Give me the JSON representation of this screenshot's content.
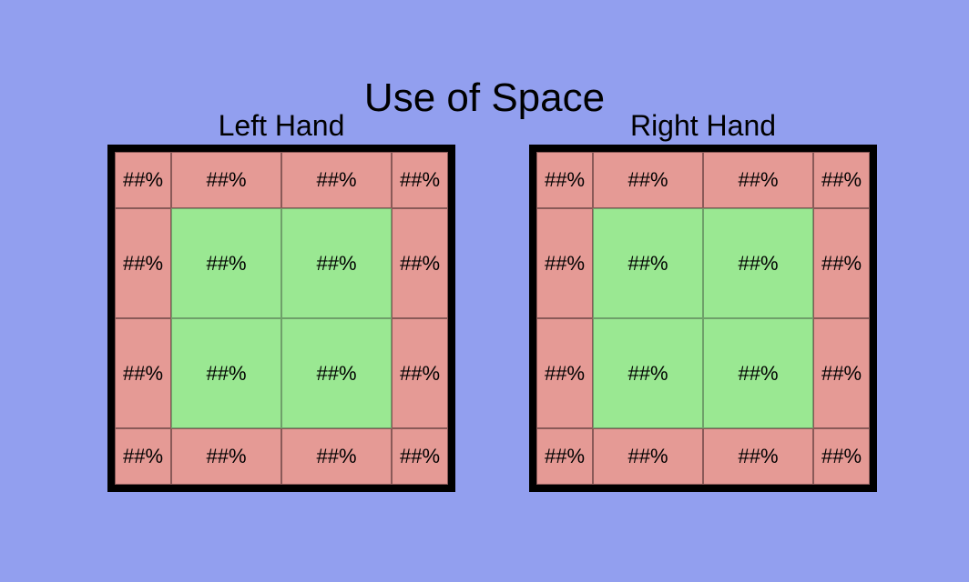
{
  "title": "Use of Space",
  "panels": [
    {
      "label": "Left Hand",
      "cells": [
        "##%",
        "##%",
        "##%",
        "##%",
        "##%",
        "##%",
        "##%",
        "##%",
        "##%",
        "##%",
        "##%",
        "##%",
        "##%",
        "##%",
        "##%",
        "##%"
      ]
    },
    {
      "label": "Right Hand",
      "cells": [
        "##%",
        "##%",
        "##%",
        "##%",
        "##%",
        "##%",
        "##%",
        "##%",
        "##%",
        "##%",
        "##%",
        "##%",
        "##%",
        "##%",
        "##%",
        "##%"
      ]
    }
  ],
  "colors": {
    "background": "#929fef",
    "outer_zone": "#e59a95",
    "inner_zone": "#9ae892",
    "frame": "#000000"
  }
}
